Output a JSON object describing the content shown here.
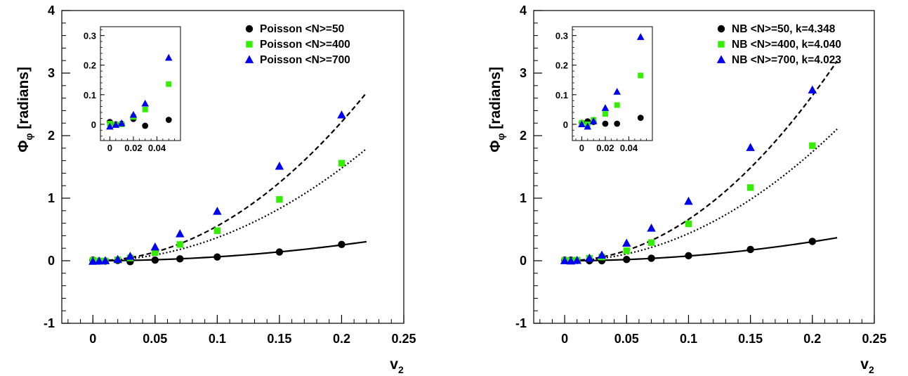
{
  "chart_data": [
    {
      "type": "scatter",
      "title": "",
      "xlabel": "v",
      "xlabel_sub": "2",
      "ylabel": "Φ",
      "ylabel_sub": "φ",
      "ylabel_rest": " [radians]",
      "xlim": [
        -0.025,
        0.25
      ],
      "ylim": [
        -1,
        4
      ],
      "xticks": [
        "0",
        "0.05",
        "0.1",
        "0.15",
        "0.2",
        "0.25"
      ],
      "xtick_values": [
        0,
        0.05,
        0.1,
        0.15,
        0.2,
        0.25
      ],
      "yticks": [
        "-1",
        "0",
        "1",
        "2",
        "3",
        "4"
      ],
      "ytick_values": [
        -1,
        0,
        1,
        2,
        3,
        4
      ],
      "legend_position": "top-right",
      "series": [
        {
          "name": "Poisson <N>=50",
          "marker": "circle",
          "color": "#000000",
          "x": [
            0,
            0.005,
            0.01,
            0.02,
            0.03,
            0.05,
            0.07,
            0.1,
            0.15,
            0.2
          ],
          "y": [
            0.01,
            -0.005,
            -0.005,
            0.005,
            -0.015,
            0.01,
            0.03,
            0.06,
            0.14,
            0.26
          ]
        },
        {
          "name": "Poisson <N>=400",
          "marker": "square",
          "color": "#33ee00",
          "x": [
            0,
            0.005,
            0.01,
            0.02,
            0.03,
            0.05,
            0.07,
            0.1,
            0.15,
            0.2
          ],
          "y": [
            0.005,
            -0.005,
            -0.005,
            0.015,
            0.045,
            0.13,
            0.26,
            0.48,
            0.98,
            1.56
          ]
        },
        {
          "name": "Poisson <N>=700",
          "marker": "triangle",
          "color": "#0000ee",
          "x": [
            0,
            0.005,
            0.01,
            0.02,
            0.03,
            0.05,
            0.07,
            0.1,
            0.15,
            0.2
          ],
          "y": [
            -0.01,
            -0.005,
            0.0,
            0.02,
            0.07,
            0.22,
            0.43,
            0.79,
            1.51,
            2.33
          ]
        }
      ],
      "fits": [
        {
          "style": "solid",
          "coef": 6.3
        },
        {
          "style": "dotted",
          "coef": 37.0
        },
        {
          "style": "dashed",
          "coef": 55.5
        }
      ],
      "fit_xmax": 0.22,
      "inset": {
        "xlim": [
          -0.008,
          0.06
        ],
        "ylim": [
          -0.055,
          0.33
        ],
        "xticks": [
          "0",
          "0.02",
          "0.04"
        ],
        "xtick_values": [
          0,
          0.02,
          0.04
        ],
        "yticks": [
          "0",
          "0.1",
          "0.2",
          "0.3"
        ],
        "ytick_values": [
          0,
          0.1,
          0.2,
          0.3
        ],
        "series": [
          {
            "x": [
              0,
              0.005,
              0.01,
              0.02,
              0.03,
              0.05
            ],
            "y": [
              0.008,
              0.0,
              0.002,
              0.018,
              -0.005,
              0.015
            ]
          },
          {
            "x": [
              0,
              0.005,
              0.01,
              0.02,
              0.03,
              0.05
            ],
            "y": [
              0.002,
              -0.002,
              0.0,
              0.025,
              0.05,
              0.136
            ]
          },
          {
            "x": [
              0,
              0.005,
              0.01,
              0.02,
              0.03,
              0.05
            ],
            "y": [
              -0.008,
              -0.002,
              0.003,
              0.032,
              0.07,
              0.225
            ]
          }
        ]
      }
    },
    {
      "type": "scatter",
      "title": "",
      "xlabel": "v",
      "xlabel_sub": "2",
      "ylabel": "Φ",
      "ylabel_sub": "φ",
      "ylabel_rest": " [radians]",
      "xlim": [
        -0.025,
        0.25
      ],
      "ylim": [
        -1,
        4
      ],
      "xticks": [
        "0",
        "0.05",
        "0.1",
        "0.15",
        "0.2",
        "0.25"
      ],
      "xtick_values": [
        0,
        0.05,
        0.1,
        0.15,
        0.2,
        0.25
      ],
      "yticks": [
        "-1",
        "0",
        "1",
        "2",
        "3",
        "4"
      ],
      "ytick_values": [
        -1,
        0,
        1,
        2,
        3,
        4
      ],
      "legend_position": "top-right",
      "series": [
        {
          "name": "NB <N>=50, k=4.348",
          "marker": "circle",
          "color": "#000000",
          "x": [
            0,
            0.005,
            0.01,
            0.02,
            0.03,
            0.05,
            0.07,
            0.1,
            0.15,
            0.2
          ],
          "y": [
            0.01,
            0.01,
            0.005,
            0.0,
            0.0,
            0.02,
            0.04,
            0.08,
            0.18,
            0.31
          ]
        },
        {
          "name": "NB <N>=400, k=4.040",
          "marker": "square",
          "color": "#33ee00",
          "x": [
            0,
            0.005,
            0.01,
            0.02,
            0.03,
            0.05,
            0.07,
            0.1,
            0.15,
            0.2
          ],
          "y": [
            0.005,
            0.0,
            0.01,
            0.04,
            0.06,
            0.16,
            0.29,
            0.59,
            1.17,
            1.84
          ]
        },
        {
          "name": "NB <N>=700, k=4.023",
          "marker": "triangle",
          "color": "#0000ee",
          "x": [
            0,
            0.005,
            0.01,
            0.02,
            0.03,
            0.05,
            0.07,
            0.1,
            0.15,
            0.2
          ],
          "y": [
            0.0,
            -0.005,
            0.005,
            0.04,
            0.09,
            0.28,
            0.52,
            0.95,
            1.81,
            2.73
          ]
        }
      ],
      "fits": [
        {
          "style": "solid",
          "coef": 7.6
        },
        {
          "style": "dotted",
          "coef": 43.5
        },
        {
          "style": "dashed",
          "coef": 66.0
        }
      ],
      "fit_xmax": 0.22,
      "inset": {
        "xlim": [
          -0.008,
          0.06
        ],
        "ylim": [
          -0.055,
          0.33
        ],
        "xticks": [
          "0",
          "0.02",
          "0.04"
        ],
        "xtick_values": [
          0,
          0.02,
          0.04
        ],
        "yticks": [
          "0",
          "0.1",
          "0.2",
          "0.3"
        ],
        "ytick_values": [
          0,
          0.1,
          0.2,
          0.3
        ],
        "series": [
          {
            "x": [
              0,
              0.005,
              0.01,
              0.02,
              0.03,
              0.05
            ],
            "y": [
              0.005,
              0.01,
              0.008,
              0.002,
              0.002,
              0.022
            ]
          },
          {
            "x": [
              0,
              0.005,
              0.01,
              0.02,
              0.03,
              0.05
            ],
            "y": [
              0.005,
              0.0,
              0.015,
              0.035,
              0.065,
              0.165
            ]
          },
          {
            "x": [
              0,
              0.005,
              0.01,
              0.02,
              0.03,
              0.05
            ],
            "y": [
              0.0,
              -0.008,
              0.01,
              0.055,
              0.11,
              0.295
            ]
          }
        ]
      }
    }
  ]
}
